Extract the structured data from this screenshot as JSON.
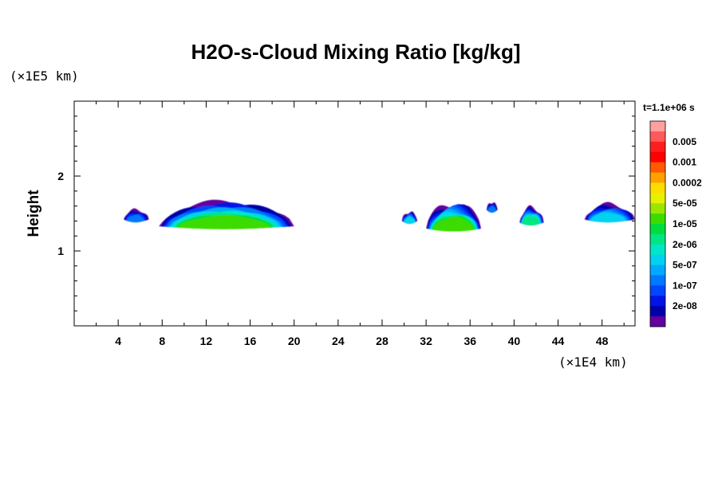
{
  "chart_data": {
    "type": "contour",
    "title": "H2O-s-Cloud Mixing Ratio [kg/kg]",
    "ylabel": "Height",
    "x_unit": "(×1E4 km)",
    "y_unit": "(×1E5 km)",
    "time_label": "t=1.1e+06 s",
    "xlim": [
      0,
      51
    ],
    "ylim": [
      0,
      3
    ],
    "x_major_ticks": [
      4,
      8,
      12,
      16,
      20,
      24,
      28,
      32,
      36,
      40,
      44,
      48
    ],
    "x_minor_ticks": [
      2,
      6,
      10,
      14,
      18,
      22,
      26,
      30,
      34,
      38,
      42,
      46,
      50
    ],
    "y_major_ticks": [
      1,
      2
    ],
    "y_minor_ticks": [
      0.2,
      0.4,
      0.6,
      0.8,
      1.2,
      1.4,
      1.6,
      1.8,
      2.2,
      2.4,
      2.6,
      2.8
    ],
    "colorbar": {
      "levels": [
        {
          "label": "",
          "color": "#ffa0a0"
        },
        {
          "label": "0.005",
          "color": "#ff5a5a"
        },
        {
          "label": "",
          "color": "#ff1e1e"
        },
        {
          "label": "0.001",
          "color": "#ff0000"
        },
        {
          "label": "",
          "color": "#ff5a00"
        },
        {
          "label": "0.0002",
          "color": "#ffa000"
        },
        {
          "label": "",
          "color": "#ffdc00"
        },
        {
          "label": "5e-05",
          "color": "#e6f000"
        },
        {
          "label": "",
          "color": "#9be600"
        },
        {
          "label": "1e-05",
          "color": "#3cdc00"
        },
        {
          "label": "",
          "color": "#00dc3c"
        },
        {
          "label": "2e-06",
          "color": "#00e682"
        },
        {
          "label": "",
          "color": "#00e6c8"
        },
        {
          "label": "5e-07",
          "color": "#00d2f0"
        },
        {
          "label": "",
          "color": "#00aaff"
        },
        {
          "label": "1e-07",
          "color": "#0078ff"
        },
        {
          "label": "",
          "color": "#0046ff"
        },
        {
          "label": "2e-08",
          "color": "#0014e6"
        },
        {
          "label": "",
          "color": "#0000aa"
        },
        {
          "label": "",
          "color": "#6400a0"
        }
      ]
    },
    "cloud_regions": [
      {
        "x": [
          4.5,
          6.8
        ],
        "y": [
          1.42,
          1.55
        ],
        "max_level": "1e-07"
      },
      {
        "x": [
          7.7,
          20.0
        ],
        "y": [
          1.33,
          1.64
        ],
        "max_level": "1e-05"
      },
      {
        "x": [
          29.8,
          31.2
        ],
        "y": [
          1.4,
          1.52
        ],
        "max_level": "5e-07"
      },
      {
        "x": [
          32.0,
          37.0
        ],
        "y": [
          1.3,
          1.63
        ],
        "max_level": "1e-05"
      },
      {
        "x": [
          37.5,
          38.5
        ],
        "y": [
          1.55,
          1.65
        ],
        "max_level": "1e-07"
      },
      {
        "x": [
          40.5,
          42.7
        ],
        "y": [
          1.38,
          1.58
        ],
        "max_level": "2e-06"
      },
      {
        "x": [
          46.4,
          51.0
        ],
        "y": [
          1.42,
          1.62
        ],
        "max_level": "5e-07"
      }
    ]
  }
}
